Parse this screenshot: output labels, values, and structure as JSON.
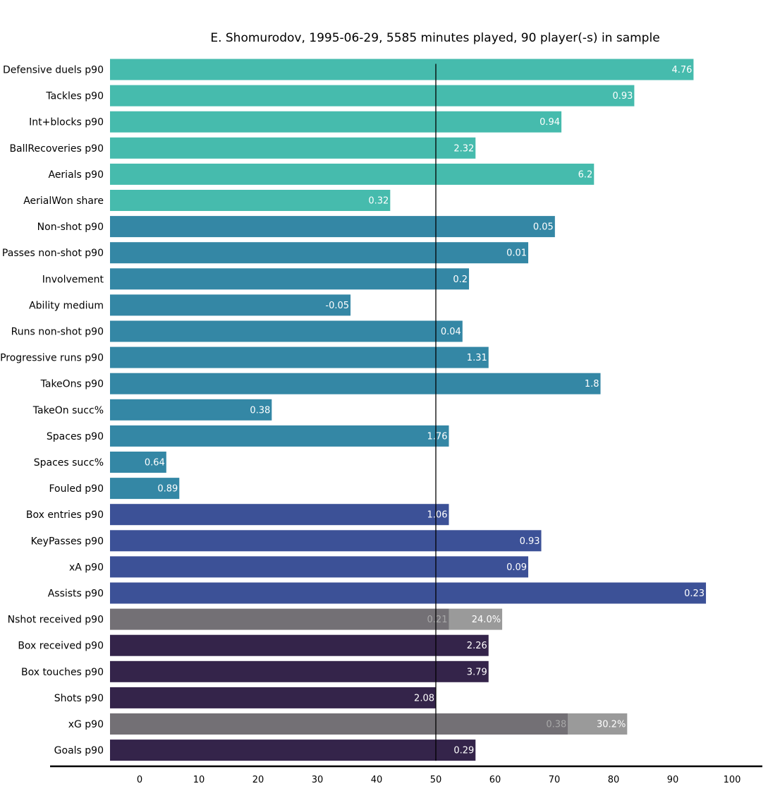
{
  "chart_data": {
    "type": "bar",
    "orientation": "horizontal",
    "title": "E. Shomurodov, 1995-06-29, 5585 minutes played, 90 player(-s) in sample",
    "xlabel": "",
    "ylabel": "",
    "xlim": [
      -5,
      105
    ],
    "xticks": [
      0,
      10,
      20,
      30,
      40,
      50,
      60,
      70,
      80,
      90,
      100
    ],
    "reference_line": 50,
    "grid": false,
    "colors": {
      "defensive": "#46bbad",
      "possession": "#3487a5",
      "creation": "#3c5197",
      "shooting": "#34244a",
      "share_bar": "#737075",
      "share_extension": "#9a9a9a",
      "share_label": "#a8a8a8"
    },
    "categories": [
      "Defensive duels p90",
      "Tackles p90",
      "Int+blocks p90",
      "BallRecoveries p90",
      "Aerials p90",
      "AerialWon share",
      "Non-shot p90",
      "Passes non-shot p90",
      "Involvement",
      "Ability medium",
      "Runs non-shot p90",
      "Progressive runs p90",
      "TakeOns p90",
      "TakeOn succ%",
      "Spaces p90",
      "Spaces succ%",
      "Fouled p90",
      "Box entries p90",
      "KeyPasses p90",
      "xA p90",
      "Assists p90",
      "Nshot received p90",
      "Box received p90",
      "Box touches p90",
      "Shots p90",
      "xG p90",
      "Goals p90"
    ],
    "bars": [
      {
        "category": "Defensive duels p90",
        "percentile": 93.5,
        "label": "4.76",
        "group": "defensive"
      },
      {
        "category": "Tackles p90",
        "percentile": 83.5,
        "label": "0.93",
        "group": "defensive"
      },
      {
        "category": "Int+blocks p90",
        "percentile": 71.2,
        "label": "0.94",
        "group": "defensive"
      },
      {
        "category": "BallRecoveries p90",
        "percentile": 56.7,
        "label": "2.32",
        "group": "defensive"
      },
      {
        "category": "Aerials p90",
        "percentile": 76.7,
        "label": "6.2",
        "group": "defensive"
      },
      {
        "category": "AerialWon share",
        "percentile": 42.3,
        "label": "0.32",
        "group": "defensive"
      },
      {
        "category": "Non-shot p90",
        "percentile": 70.1,
        "label": "0.05",
        "group": "possession"
      },
      {
        "category": "Passes non-shot p90",
        "percentile": 65.6,
        "label": "0.01",
        "group": "possession"
      },
      {
        "category": "Involvement",
        "percentile": 55.6,
        "label": "0.2",
        "group": "possession"
      },
      {
        "category": "Ability medium",
        "percentile": 35.6,
        "label": "-0.05",
        "group": "possession"
      },
      {
        "category": "Runs non-shot p90",
        "percentile": 54.5,
        "label": "0.04",
        "group": "possession"
      },
      {
        "category": "Progressive runs p90",
        "percentile": 58.9,
        "label": "1.31",
        "group": "possession"
      },
      {
        "category": "TakeOns p90",
        "percentile": 77.8,
        "label": "1.8",
        "group": "possession"
      },
      {
        "category": "TakeOn succ%",
        "percentile": 22.3,
        "label": "0.38",
        "group": "possession"
      },
      {
        "category": "Spaces p90",
        "percentile": 52.2,
        "label": "1.76",
        "group": "possession"
      },
      {
        "category": "Spaces succ%",
        "percentile": 4.5,
        "label": "0.64",
        "group": "possession"
      },
      {
        "category": "Fouled p90",
        "percentile": 6.7,
        "label": "0.89",
        "group": "possession"
      },
      {
        "category": "Box entries p90",
        "percentile": 52.2,
        "label": "1.06",
        "group": "creation"
      },
      {
        "category": "KeyPasses p90",
        "percentile": 67.8,
        "label": "0.93",
        "group": "creation"
      },
      {
        "category": "xA p90",
        "percentile": 65.6,
        "label": "0.09",
        "group": "creation"
      },
      {
        "category": "Assists p90",
        "percentile": 95.6,
        "label": "0.23",
        "group": "creation"
      },
      {
        "category": "Nshot received p90",
        "percentile": 52.2,
        "label": "0.21",
        "group": "share_bar",
        "extension": 61.2,
        "extension_label": "24.0%"
      },
      {
        "category": "Box received p90",
        "percentile": 58.9,
        "label": "2.26",
        "group": "shooting"
      },
      {
        "category": "Box touches p90",
        "percentile": 58.9,
        "label": "3.79",
        "group": "shooting"
      },
      {
        "category": "Shots p90",
        "percentile": 50.0,
        "label": "2.08",
        "group": "shooting"
      },
      {
        "category": "xG p90",
        "percentile": 72.3,
        "label": "0.38",
        "group": "share_bar",
        "extension": 82.3,
        "extension_label": "30.2%"
      },
      {
        "category": "Goals p90",
        "percentile": 56.7,
        "label": "0.29",
        "group": "shooting"
      }
    ]
  }
}
